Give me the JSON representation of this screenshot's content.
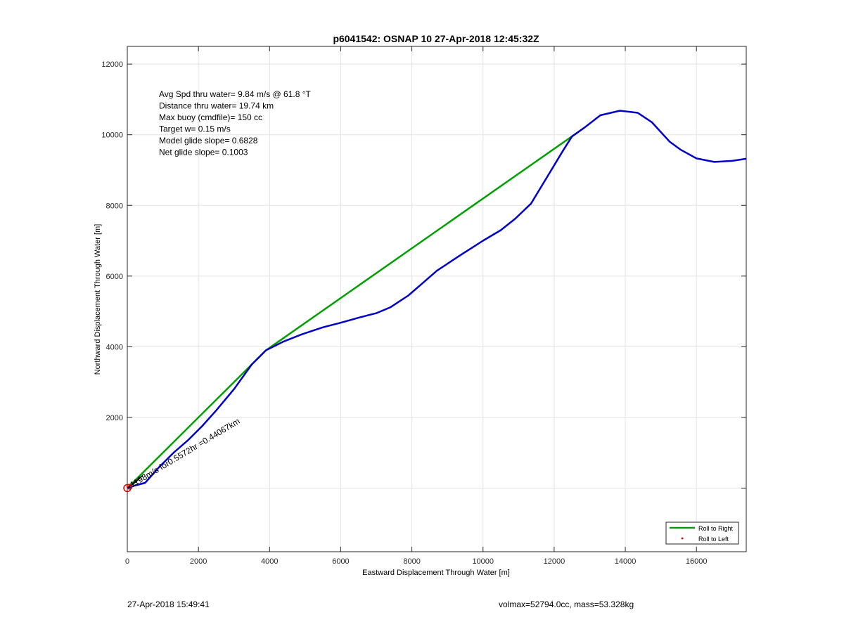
{
  "chart_data": {
    "type": "line",
    "title": "p6041542: OSNAP 10 27-Apr-2018 12:45:32Z",
    "xlabel": "Eastward Displacement Through Water [m]",
    "ylabel": "Northward Displacement Through Water [m]",
    "xlim": [
      0,
      17400
    ],
    "ylim": [
      -1800,
      12500
    ],
    "xticks": [
      0,
      2000,
      4000,
      6000,
      8000,
      10000,
      12000,
      14000,
      16000
    ],
    "xtick_labels": [
      "0",
      "2000",
      "4000",
      "6000",
      "8000",
      "10000",
      "12000",
      "14000",
      "16000"
    ],
    "yticks": [
      0,
      2000,
      4000,
      6000,
      8000,
      10000,
      12000
    ],
    "ytick_labels": [
      "",
      "2000",
      "4000",
      "6000",
      "8000",
      "10000",
      "12000"
    ],
    "grid": true,
    "legend_position": "bottom-right",
    "legend": [
      {
        "label": "Roll to Right",
        "color": "#00a000",
        "style": "line"
      },
      {
        "label": "Roll to Left",
        "color": "#dd0000",
        "style": "dot"
      }
    ],
    "series": [
      {
        "name": "Roll to Right",
        "color": "#00a000",
        "x": [
          0,
          3500,
          3900,
          12850
        ],
        "y": [
          0,
          3500,
          3900,
          10200
        ]
      },
      {
        "color": "#0000c8",
        "x": [
          0,
          200,
          500,
          900,
          1300,
          1700,
          2100,
          2500,
          3000,
          3500,
          3900,
          4400,
          4900,
          5500,
          6000,
          6500,
          7000,
          7400,
          7900,
          8300,
          8700,
          9300,
          10000,
          10500,
          10900,
          11350,
          11800,
          12250,
          12500,
          12850,
          13300,
          13850,
          14350,
          14750,
          15250,
          15550,
          16000,
          16500,
          17000,
          17400
        ],
        "y": [
          0,
          70,
          150,
          600,
          1000,
          1350,
          1750,
          2200,
          2800,
          3500,
          3900,
          4150,
          4350,
          4550,
          4680,
          4820,
          4950,
          5120,
          5450,
          5800,
          6150,
          6550,
          7000,
          7300,
          7620,
          8050,
          8800,
          9550,
          9950,
          10200,
          10550,
          10680,
          10620,
          10350,
          9800,
          9580,
          9330,
          9230,
          9260,
          9320
        ]
      }
    ],
    "annotations": [
      "Avg Spd thru water=  9.84 m/s @  61.8 °T",
      "Distance thru water= 19.74 km",
      "Max buoy (cmdfile)= 150 cc",
      "Target w= 0.15 m/s",
      "Model glide slope= 0.6828",
      "Net glide slope= 0.1003"
    ],
    "rotated_label": "1198m/s for0.5572hr =0.44067km"
  },
  "footer": {
    "left": "27-Apr-2018 15:49:41",
    "right": "volmax=52794.0cc, mass=53.328kg"
  }
}
